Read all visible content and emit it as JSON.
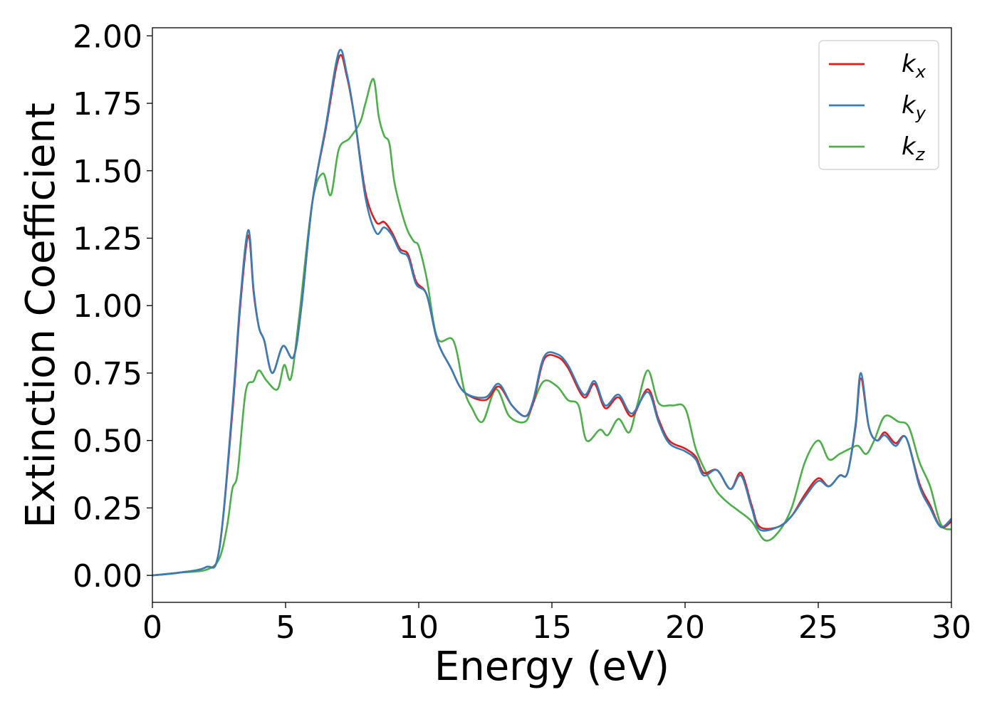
{
  "chart_data": {
    "type": "line",
    "title": "",
    "xlabel": "Energy (eV)",
    "ylabel": "Extinction Coefficient",
    "xlim": [
      0,
      30
    ],
    "ylim": [
      -0.1,
      2.03
    ],
    "xticks": [
      0,
      5,
      10,
      15,
      20,
      25,
      30
    ],
    "xtick_labels": [
      "0",
      "5",
      "10",
      "15",
      "20",
      "25",
      "30"
    ],
    "yticks": [
      0.0,
      0.25,
      0.5,
      0.75,
      1.0,
      1.25,
      1.5,
      1.75,
      2.0
    ],
    "ytick_labels": [
      "0.00",
      "0.25",
      "0.50",
      "0.75",
      "1.00",
      "1.25",
      "1.50",
      "1.75",
      "2.00"
    ],
    "grid": false,
    "legend_position": "top-right",
    "series": [
      {
        "name": "k_x",
        "label_base": "k",
        "label_sub": "x",
        "color": "#e41a1c",
        "points": [
          [
            0,
            0.0
          ],
          [
            1,
            0.01
          ],
          [
            2,
            0.03
          ],
          [
            2.5,
            0.09
          ],
          [
            3.0,
            0.6
          ],
          [
            3.3,
            1.0
          ],
          [
            3.6,
            1.26
          ],
          [
            3.8,
            1.05
          ],
          [
            4.0,
            0.92
          ],
          [
            4.2,
            0.87
          ],
          [
            4.5,
            0.75
          ],
          [
            4.9,
            0.85
          ],
          [
            5.3,
            0.81
          ],
          [
            5.6,
            1.0
          ],
          [
            6.0,
            1.38
          ],
          [
            6.5,
            1.65
          ],
          [
            7.0,
            1.92
          ],
          [
            7.3,
            1.85
          ],
          [
            7.6,
            1.69
          ],
          [
            8.0,
            1.42
          ],
          [
            8.4,
            1.31
          ],
          [
            8.7,
            1.31
          ],
          [
            9.0,
            1.27
          ],
          [
            9.3,
            1.21
          ],
          [
            9.6,
            1.19
          ],
          [
            9.9,
            1.09
          ],
          [
            10.3,
            1.04
          ],
          [
            10.7,
            0.87
          ],
          [
            11.2,
            0.77
          ],
          [
            11.7,
            0.68
          ],
          [
            12.5,
            0.65
          ],
          [
            13.0,
            0.7
          ],
          [
            13.5,
            0.63
          ],
          [
            14.0,
            0.59
          ],
          [
            14.3,
            0.64
          ],
          [
            14.7,
            0.8
          ],
          [
            15.2,
            0.81
          ],
          [
            15.6,
            0.77
          ],
          [
            16.2,
            0.66
          ],
          [
            16.6,
            0.71
          ],
          [
            17.0,
            0.62
          ],
          [
            17.5,
            0.66
          ],
          [
            18.0,
            0.59
          ],
          [
            18.6,
            0.69
          ],
          [
            19.0,
            0.58
          ],
          [
            19.4,
            0.5
          ],
          [
            20.0,
            0.47
          ],
          [
            20.4,
            0.44
          ],
          [
            20.7,
            0.38
          ],
          [
            21.2,
            0.39
          ],
          [
            21.7,
            0.32
          ],
          [
            22.1,
            0.38
          ],
          [
            22.5,
            0.26
          ],
          [
            22.8,
            0.18
          ],
          [
            23.5,
            0.18
          ],
          [
            24.0,
            0.22
          ],
          [
            24.5,
            0.3
          ],
          [
            25.0,
            0.36
          ],
          [
            25.4,
            0.33
          ],
          [
            25.8,
            0.37
          ],
          [
            26.1,
            0.38
          ],
          [
            26.4,
            0.55
          ],
          [
            26.6,
            0.73
          ],
          [
            26.9,
            0.55
          ],
          [
            27.2,
            0.5
          ],
          [
            27.5,
            0.53
          ],
          [
            27.9,
            0.49
          ],
          [
            28.3,
            0.51
          ],
          [
            28.8,
            0.34
          ],
          [
            29.2,
            0.26
          ],
          [
            29.6,
            0.18
          ],
          [
            30.0,
            0.2
          ]
        ]
      },
      {
        "name": "k_y",
        "label_base": "k",
        "label_sub": "y",
        "color": "#377eb8",
        "points": [
          [
            0,
            0.0
          ],
          [
            1,
            0.01
          ],
          [
            2,
            0.03
          ],
          [
            2.5,
            0.09
          ],
          [
            3.0,
            0.62
          ],
          [
            3.3,
            1.02
          ],
          [
            3.6,
            1.28
          ],
          [
            3.8,
            1.06
          ],
          [
            4.0,
            0.92
          ],
          [
            4.2,
            0.87
          ],
          [
            4.5,
            0.75
          ],
          [
            4.9,
            0.85
          ],
          [
            5.3,
            0.81
          ],
          [
            5.6,
            1.0
          ],
          [
            6.0,
            1.38
          ],
          [
            6.5,
            1.66
          ],
          [
            7.0,
            1.94
          ],
          [
            7.3,
            1.86
          ],
          [
            7.6,
            1.69
          ],
          [
            8.0,
            1.4
          ],
          [
            8.4,
            1.27
          ],
          [
            8.7,
            1.29
          ],
          [
            9.0,
            1.26
          ],
          [
            9.3,
            1.2
          ],
          [
            9.6,
            1.18
          ],
          [
            9.9,
            1.08
          ],
          [
            10.3,
            1.04
          ],
          [
            10.7,
            0.87
          ],
          [
            11.2,
            0.77
          ],
          [
            11.7,
            0.68
          ],
          [
            12.5,
            0.66
          ],
          [
            13.0,
            0.71
          ],
          [
            13.5,
            0.63
          ],
          [
            14.0,
            0.59
          ],
          [
            14.3,
            0.65
          ],
          [
            14.7,
            0.81
          ],
          [
            15.2,
            0.82
          ],
          [
            15.6,
            0.78
          ],
          [
            16.2,
            0.67
          ],
          [
            16.6,
            0.72
          ],
          [
            17.0,
            0.63
          ],
          [
            17.5,
            0.67
          ],
          [
            18.0,
            0.6
          ],
          [
            18.6,
            0.68
          ],
          [
            19.0,
            0.57
          ],
          [
            19.4,
            0.49
          ],
          [
            20.0,
            0.46
          ],
          [
            20.4,
            0.43
          ],
          [
            20.7,
            0.37
          ],
          [
            21.2,
            0.39
          ],
          [
            21.7,
            0.32
          ],
          [
            22.1,
            0.37
          ],
          [
            22.5,
            0.25
          ],
          [
            22.8,
            0.17
          ],
          [
            23.5,
            0.18
          ],
          [
            24.0,
            0.22
          ],
          [
            24.5,
            0.29
          ],
          [
            25.0,
            0.35
          ],
          [
            25.4,
            0.33
          ],
          [
            25.8,
            0.37
          ],
          [
            26.1,
            0.38
          ],
          [
            26.4,
            0.56
          ],
          [
            26.6,
            0.75
          ],
          [
            26.9,
            0.55
          ],
          [
            27.2,
            0.5
          ],
          [
            27.5,
            0.52
          ],
          [
            27.9,
            0.48
          ],
          [
            28.3,
            0.51
          ],
          [
            28.8,
            0.33
          ],
          [
            29.2,
            0.25
          ],
          [
            29.6,
            0.18
          ],
          [
            30.0,
            0.21
          ]
        ]
      },
      {
        "name": "k_z",
        "label_base": "k",
        "label_sub": "z",
        "color": "#4daf4a",
        "points": [
          [
            0,
            0.0
          ],
          [
            1,
            0.01
          ],
          [
            2,
            0.02
          ],
          [
            2.5,
            0.06
          ],
          [
            2.8,
            0.18
          ],
          [
            3.0,
            0.32
          ],
          [
            3.2,
            0.38
          ],
          [
            3.5,
            0.68
          ],
          [
            3.8,
            0.72
          ],
          [
            4.0,
            0.76
          ],
          [
            4.3,
            0.72
          ],
          [
            4.7,
            0.69
          ],
          [
            4.95,
            0.78
          ],
          [
            5.2,
            0.73
          ],
          [
            5.5,
            0.95
          ],
          [
            6.0,
            1.38
          ],
          [
            6.4,
            1.49
          ],
          [
            6.7,
            1.41
          ],
          [
            7.0,
            1.58
          ],
          [
            7.4,
            1.62
          ],
          [
            7.8,
            1.68
          ],
          [
            8.0,
            1.75
          ],
          [
            8.3,
            1.84
          ],
          [
            8.5,
            1.7
          ],
          [
            8.7,
            1.63
          ],
          [
            8.9,
            1.6
          ],
          [
            9.1,
            1.45
          ],
          [
            9.5,
            1.3
          ],
          [
            9.8,
            1.24
          ],
          [
            10.0,
            1.22
          ],
          [
            10.3,
            1.1
          ],
          [
            10.7,
            0.88
          ],
          [
            11.3,
            0.87
          ],
          [
            11.7,
            0.69
          ],
          [
            12.0,
            0.62
          ],
          [
            12.4,
            0.57
          ],
          [
            12.9,
            0.69
          ],
          [
            13.4,
            0.59
          ],
          [
            14.0,
            0.57
          ],
          [
            14.3,
            0.64
          ],
          [
            14.7,
            0.72
          ],
          [
            15.2,
            0.7
          ],
          [
            15.6,
            0.65
          ],
          [
            16.0,
            0.63
          ],
          [
            16.3,
            0.5
          ],
          [
            16.8,
            0.54
          ],
          [
            17.1,
            0.52
          ],
          [
            17.5,
            0.58
          ],
          [
            17.9,
            0.53
          ],
          [
            18.2,
            0.63
          ],
          [
            18.6,
            0.76
          ],
          [
            19.0,
            0.64
          ],
          [
            19.5,
            0.63
          ],
          [
            20.0,
            0.62
          ],
          [
            20.4,
            0.47
          ],
          [
            20.8,
            0.38
          ],
          [
            21.2,
            0.31
          ],
          [
            21.6,
            0.27
          ],
          [
            22.0,
            0.24
          ],
          [
            22.5,
            0.2
          ],
          [
            23.0,
            0.13
          ],
          [
            23.5,
            0.16
          ],
          [
            24.0,
            0.25
          ],
          [
            24.5,
            0.42
          ],
          [
            25.0,
            0.5
          ],
          [
            25.4,
            0.43
          ],
          [
            25.8,
            0.45
          ],
          [
            26.2,
            0.47
          ],
          [
            26.5,
            0.48
          ],
          [
            26.8,
            0.45
          ],
          [
            27.1,
            0.5
          ],
          [
            27.5,
            0.59
          ],
          [
            28.0,
            0.57
          ],
          [
            28.4,
            0.55
          ],
          [
            28.8,
            0.42
          ],
          [
            29.2,
            0.33
          ],
          [
            29.6,
            0.19
          ],
          [
            30.0,
            0.17
          ]
        ]
      }
    ]
  }
}
